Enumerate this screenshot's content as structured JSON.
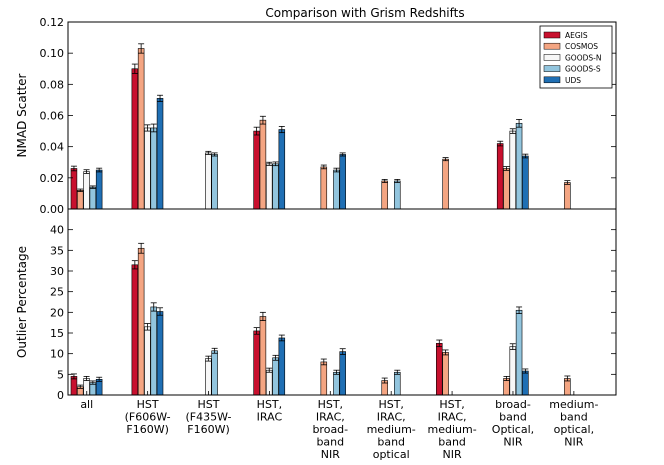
{
  "chart_data": {
    "type": "bar",
    "title": "Comparison with Grism Redshifts",
    "categories": [
      [
        "all"
      ],
      [
        "HST",
        "(F606W-",
        "F160W)"
      ],
      [
        "HST",
        "(F435W-",
        "F160W)"
      ],
      [
        "HST,",
        "IRAC"
      ],
      [
        "HST,",
        "IRAC,",
        "broad-",
        "band",
        "NIR"
      ],
      [
        "HST,",
        "IRAC,",
        "medium-",
        "band",
        "optical"
      ],
      [
        "HST,",
        "IRAC,",
        "medium-",
        "band",
        "NIR"
      ],
      [
        "broad-",
        "band",
        "Optical,",
        "NIR"
      ],
      [
        "medium-",
        "band",
        "optical,",
        "NIR"
      ]
    ],
    "series_colors": {
      "AEGIS": "#c8102e",
      "COSMOS": "#f4a582",
      "GOODS-N": "#f7f7f7",
      "GOODS-S": "#92c5de",
      "UDS": "#1f6fb4"
    },
    "legend": [
      "AEGIS",
      "COSMOS",
      "GOODS-N",
      "GOODS-S",
      "UDS"
    ],
    "legend_position": "top-right",
    "panels": [
      {
        "ylabel": "NMAD Scatter",
        "ylim": [
          0,
          0.12
        ],
        "yticks": [
          "0.00",
          "0.02",
          "0.04",
          "0.06",
          "0.08",
          "0.10",
          "0.12"
        ],
        "ytick_values": [
          0,
          0.02,
          0.04,
          0.06,
          0.08,
          0.1,
          0.12
        ],
        "series": [
          {
            "name": "AEGIS",
            "values": [
              0.026,
              0.09,
              null,
              0.05,
              null,
              null,
              null,
              0.042,
              null
            ],
            "errors": [
              0.0015,
              0.003,
              null,
              0.0025,
              null,
              null,
              null,
              0.0015,
              null
            ]
          },
          {
            "name": "COSMOS",
            "values": [
              0.012,
              0.103,
              null,
              0.057,
              0.027,
              0.018,
              0.032,
              0.026,
              0.017
            ],
            "errors": [
              0.0008,
              0.003,
              null,
              0.0025,
              0.0012,
              0.001,
              0.001,
              0.0012,
              0.0012
            ]
          },
          {
            "name": "GOODS-N",
            "values": [
              0.024,
              0.052,
              0.036,
              0.029,
              null,
              null,
              null,
              0.05,
              null
            ],
            "errors": [
              0.0012,
              0.002,
              0.001,
              0.001,
              null,
              null,
              null,
              0.0015,
              null
            ]
          },
          {
            "name": "GOODS-S",
            "values": [
              0.014,
              0.052,
              0.035,
              0.029,
              0.025,
              0.018,
              null,
              0.055,
              null
            ],
            "errors": [
              0.0008,
              0.0025,
              0.001,
              0.0012,
              0.0012,
              0.001,
              null,
              0.0025,
              null
            ]
          },
          {
            "name": "UDS",
            "values": [
              0.025,
              0.071,
              null,
              0.051,
              0.035,
              null,
              null,
              0.034,
              null
            ],
            "errors": [
              0.0012,
              0.002,
              null,
              0.002,
              0.001,
              null,
              null,
              0.0012,
              null
            ]
          }
        ]
      },
      {
        "ylabel": "Outlier Percentage",
        "ylim": [
          0,
          45
        ],
        "yticks": [
          "0",
          "5",
          "10",
          "15",
          "20",
          "25",
          "30",
          "35",
          "40"
        ],
        "ytick_values": [
          0,
          5,
          10,
          15,
          20,
          25,
          30,
          35,
          40
        ],
        "series": [
          {
            "name": "AEGIS",
            "values": [
              4.5,
              31.5,
              null,
              15.5,
              null,
              null,
              12.5,
              null,
              null
            ],
            "errors": [
              0.6,
              1.0,
              null,
              0.8,
              null,
              null,
              0.8,
              null,
              null
            ]
          },
          {
            "name": "COSMOS",
            "values": [
              2.0,
              35.5,
              null,
              19.0,
              8.0,
              3.5,
              10.3,
              4.0,
              4.0
            ],
            "errors": [
              0.4,
              1.2,
              null,
              1.0,
              0.7,
              0.6,
              0.6,
              0.5,
              0.6
            ]
          },
          {
            "name": "GOODS-N",
            "values": [
              4.0,
              16.5,
              8.8,
              6.0,
              null,
              null,
              null,
              11.7,
              null
            ],
            "errors": [
              0.5,
              0.8,
              0.6,
              0.5,
              null,
              null,
              null,
              0.7,
              null
            ]
          },
          {
            "name": "GOODS-S",
            "values": [
              3.0,
              21.3,
              10.7,
              9.0,
              5.5,
              5.5,
              null,
              20.5,
              null
            ],
            "errors": [
              0.4,
              1.0,
              0.6,
              0.6,
              0.5,
              0.5,
              null,
              0.8,
              null
            ]
          },
          {
            "name": "UDS",
            "values": [
              3.8,
              20.2,
              null,
              13.8,
              10.5,
              null,
              null,
              5.8,
              null
            ],
            "errors": [
              0.5,
              0.9,
              null,
              0.7,
              0.7,
              null,
              null,
              0.5,
              null
            ]
          }
        ]
      }
    ]
  }
}
